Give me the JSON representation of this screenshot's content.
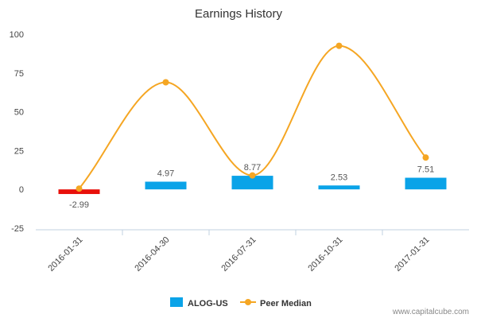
{
  "chart_data": {
    "type": "bar",
    "title": "Earnings History",
    "categories": [
      "2016-01-31",
      "2016-04-30",
      "2016-07-31",
      "2016-10-31",
      "2017-01-31"
    ],
    "ylim": [
      -25,
      100
    ],
    "yticks": [
      "100",
      "75",
      "50",
      "25",
      "0",
      "-25"
    ],
    "grid": false,
    "legend_position": "bottom-center",
    "series": [
      {
        "name": "ALOG-US",
        "type": "bar",
        "values": [
          -2.99,
          4.97,
          8.77,
          2.53,
          7.51
        ],
        "labels": [
          "-2.99",
          "4.97",
          "8.77",
          "2.53",
          "7.51"
        ],
        "color": "#0aa3e8",
        "negative_color": "#e8100a"
      },
      {
        "name": "Peer Median",
        "type": "line",
        "smooth": true,
        "values": [
          0.5,
          69,
          9,
          92.5,
          20.5
        ],
        "color": "#f5a623"
      }
    ]
  },
  "watermark": "www.capitalcube.com"
}
